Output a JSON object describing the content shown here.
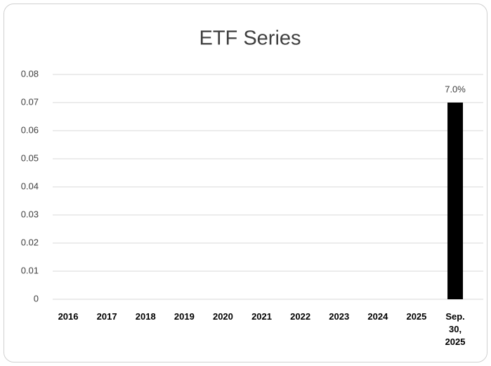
{
  "chart_data": {
    "type": "bar",
    "title": "ETF Series",
    "categories": [
      "2016",
      "2017",
      "2018",
      "2019",
      "2020",
      "2021",
      "2022",
      "2023",
      "2024",
      "2025",
      "Sep. 30, 2025"
    ],
    "values": [
      null,
      null,
      null,
      null,
      null,
      null,
      null,
      null,
      null,
      null,
      0.07
    ],
    "value_labels": [
      null,
      null,
      null,
      null,
      null,
      null,
      null,
      null,
      null,
      null,
      "7.0%"
    ],
    "color": "#000000",
    "ylim": [
      0,
      0.08
    ],
    "yticks": [
      0,
      0.01,
      0.02,
      0.03,
      0.04,
      0.05,
      0.06,
      0.07,
      0.08
    ],
    "grid": true
  }
}
